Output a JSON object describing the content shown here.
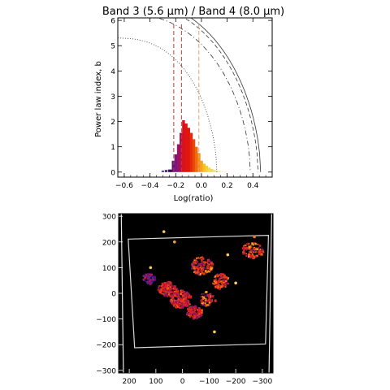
{
  "chart_data": [
    {
      "type": "line",
      "title": "Band 3 (5.6 μm) / Band 4 (8.0 μm)",
      "xlabel": "Log(ratio)",
      "ylabel": "Power law index, b",
      "xlim": [
        -0.65,
        0.55
      ],
      "ylim": [
        -0.2,
        6.1
      ],
      "x_ticks": [
        "−0.6",
        "−0.4",
        "−0.2",
        "0.0",
        "0.2",
        "0.4"
      ],
      "x_tick_values": [
        -0.6,
        -0.4,
        -0.2,
        0.0,
        0.2,
        0.4
      ],
      "y_ticks": [
        "0",
        "1",
        "2",
        "3",
        "4",
        "5",
        "6"
      ],
      "y_tick_values": [
        0,
        1,
        2,
        3,
        4,
        5,
        6
      ],
      "curves": [
        {
          "style": "solid",
          "color": "#333333",
          "x0": 0.46,
          "y_at_left": 6.9
        },
        {
          "style": "dashed",
          "color": "#333333",
          "x0": 0.44,
          "y_at_left": 6.75
        },
        {
          "style": "dash-dot",
          "color": "#333333",
          "x0": 0.38,
          "y_at_left": 6.3
        },
        {
          "style": "dotted",
          "color": "#333333",
          "x0": 0.12,
          "y_at_left": 5.3
        }
      ],
      "vlines": [
        {
          "x": -0.215,
          "color": "#c83a3a"
        },
        {
          "x": -0.155,
          "color": "#c83a3a"
        },
        {
          "x": -0.02,
          "color": "#e8a070"
        }
      ],
      "histogram": {
        "bin_start": -0.25,
        "bin_width": 0.02,
        "heights": [
          0.1,
          0.45,
          0.7,
          1.1,
          1.55,
          2.05,
          1.92,
          1.75,
          1.55,
          1.3,
          1.0,
          0.75,
          0.45,
          0.33,
          0.25,
          0.18,
          0.12,
          0.08,
          0.05,
          0.05,
          0.04,
          0.03,
          0.03,
          0.02,
          0.02,
          0.02
        ],
        "colors": [
          "#3a0a5c",
          "#5a0f78",
          "#7a1680",
          "#9a1268",
          "#b80e48",
          "#d41222",
          "#e0150f",
          "#e0150f",
          "#e62a0c",
          "#ea4a08",
          "#ef6a0a",
          "#f38a10",
          "#f5a418",
          "#f6be28",
          "#f4cf3a",
          "#f1dc55",
          "#ecd76a",
          "#e8e07a",
          "#f0e890",
          "#f5efb0",
          "#f7f3c8",
          "#f8f6d6",
          "#faf8e0",
          "#fbfae8",
          "#fcfbef",
          "#fdfdf5"
        ]
      },
      "small_bars_left": [
        {
          "x": -0.31,
          "h": 0.06,
          "color": "#4a3a9a"
        },
        {
          "x": -0.285,
          "h": 0.08,
          "color": "#2a1a6a"
        },
        {
          "x": -0.26,
          "h": 0.1,
          "color": "#3a0a5c"
        }
      ]
    },
    {
      "type": "scatter",
      "title": "",
      "xlabel": "",
      "ylabel": "",
      "xlim": [
        240,
        -340
      ],
      "ylim": [
        -310,
        310
      ],
      "x_ticks": [
        "200",
        "100",
        "0",
        "−100",
        "−200",
        "−300"
      ],
      "x_tick_values": [
        200,
        100,
        0,
        -100,
        -200,
        -300
      ],
      "y_ticks": [
        "300",
        "200",
        "100",
        "0",
        "−100",
        "−200",
        "−300"
      ],
      "y_tick_values": [
        300,
        200,
        100,
        0,
        -100,
        -200,
        -300
      ],
      "background": "#000000",
      "frame_polygon": [
        [
          204,
          211
        ],
        [
          -323,
          226
        ],
        [
          -312,
          -197
        ],
        [
          180,
          -212
        ]
      ],
      "frame_color": "#d8d8d8",
      "clusters": [
        {
          "cx": 130,
          "cy": 60,
          "rx": 25,
          "ry": 20,
          "n": 80,
          "color_set": "purple"
        },
        {
          "cx": 60,
          "cy": 20,
          "rx": 35,
          "ry": 30,
          "n": 140,
          "color_set": "red"
        },
        {
          "cx": 10,
          "cy": -20,
          "rx": 40,
          "ry": 35,
          "n": 200,
          "color_set": "red"
        },
        {
          "cx": -40,
          "cy": -70,
          "rx": 30,
          "ry": 25,
          "n": 120,
          "color_set": "red"
        },
        {
          "cx": -70,
          "cy": 110,
          "rx": 40,
          "ry": 35,
          "n": 120,
          "color_set": "mixed"
        },
        {
          "cx": -140,
          "cy": 50,
          "rx": 30,
          "ry": 30,
          "n": 90,
          "color_set": "mixed"
        },
        {
          "cx": -260,
          "cy": 170,
          "rx": 40,
          "ry": 30,
          "n": 110,
          "color_set": "mixed"
        },
        {
          "cx": -90,
          "cy": -20,
          "rx": 30,
          "ry": 30,
          "n": 60,
          "color_set": "mixed"
        }
      ],
      "bright_dots": [
        {
          "x": 70,
          "y": 240,
          "color": "#f8d060"
        },
        {
          "x": 120,
          "y": 100,
          "color": "#f8d060"
        },
        {
          "x": -170,
          "y": 150,
          "color": "#f8d060"
        },
        {
          "x": -270,
          "y": 220,
          "color": "#e87838"
        },
        {
          "x": -200,
          "y": 40,
          "color": "#f8d060"
        },
        {
          "x": -250,
          "y": 150,
          "color": "#ff5030"
        },
        {
          "x": 30,
          "y": 200,
          "color": "#f0a040"
        },
        {
          "x": -120,
          "y": -150,
          "color": "#f8d060"
        }
      ]
    }
  ]
}
